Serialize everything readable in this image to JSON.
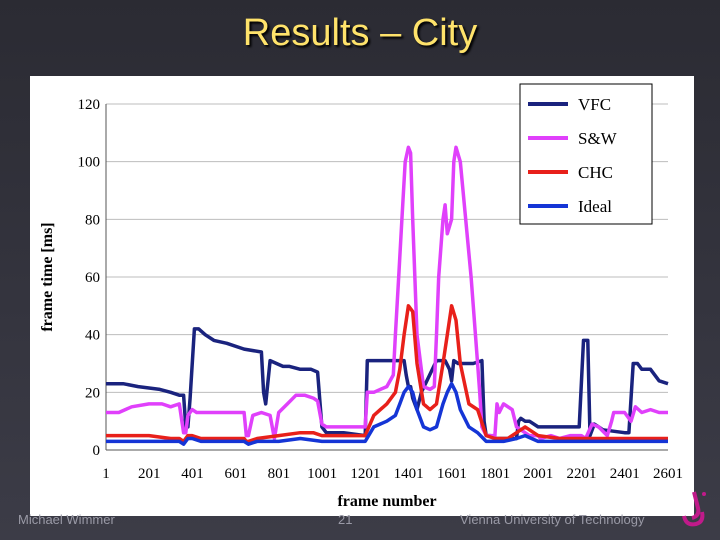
{
  "slide": {
    "title": "Results – City",
    "footer_author": "Michael Wimmer",
    "footer_page": "21",
    "footer_org": "Vienna University of Technology"
  },
  "chart_data": {
    "type": "line",
    "title": "",
    "xlabel": "frame number",
    "ylabel": "frame time [ms]",
    "xlim": [
      1,
      2601
    ],
    "ylim": [
      0,
      120
    ],
    "xticks": [
      "1",
      "201",
      "401",
      "601",
      "801",
      "1001",
      "1201",
      "1401",
      "1601",
      "1801",
      "2001",
      "2201",
      "2401",
      "2601"
    ],
    "yticks": [
      "0",
      "20",
      "40",
      "60",
      "80",
      "100",
      "120"
    ],
    "grid": "horizontal",
    "legend_position": "top-right",
    "series": [
      {
        "name": "VFC",
        "color": "#1a237e",
        "x": [
          1,
          80,
          150,
          250,
          300,
          340,
          360,
          370,
          380,
          390,
          410,
          430,
          460,
          500,
          560,
          640,
          720,
          730,
          740,
          760,
          790,
          820,
          850,
          900,
          950,
          980,
          1000,
          1020,
          1100,
          1200,
          1210,
          1230,
          1300,
          1380,
          1390,
          1400,
          1410,
          1420,
          1440,
          1460,
          1530,
          1550,
          1570,
          1590,
          1600,
          1610,
          1630,
          1700,
          1740,
          1750,
          1760,
          1780,
          1800,
          1900,
          1910,
          1920,
          1940,
          1960,
          2000,
          2030,
          2060,
          2100,
          2150,
          2190,
          2210,
          2230,
          2240,
          2260,
          2280,
          2300,
          2400,
          2420,
          2440,
          2460,
          2480,
          2520,
          2560,
          2601
        ],
        "y": [
          23,
          23,
          22,
          21,
          20,
          19,
          19,
          8,
          8,
          18,
          42,
          42,
          40,
          38,
          37,
          35,
          34,
          20,
          16,
          31,
          30,
          29,
          29,
          28,
          28,
          27,
          8,
          6,
          6,
          5,
          31,
          31,
          31,
          31,
          26,
          22,
          22,
          18,
          14,
          20,
          31,
          31,
          31,
          28,
          24,
          31,
          30,
          30,
          31,
          10,
          5,
          5,
          4,
          4,
          10,
          11,
          10,
          10,
          8,
          8,
          8,
          8,
          8,
          8,
          38,
          38,
          5,
          9,
          8,
          7,
          6,
          6,
          30,
          30,
          28,
          28,
          24,
          23
        ]
      },
      {
        "name": "S&W",
        "color": "#e040fb",
        "x": [
          1,
          60,
          120,
          200,
          260,
          300,
          340,
          360,
          370,
          380,
          400,
          420,
          440,
          500,
          600,
          640,
          650,
          660,
          680,
          720,
          760,
          780,
          800,
          840,
          880,
          920,
          960,
          980,
          1000,
          1020,
          1100,
          1200,
          1210,
          1240,
          1300,
          1330,
          1340,
          1355,
          1370,
          1385,
          1400,
          1410,
          1420,
          1440,
          1470,
          1500,
          1520,
          1530,
          1540,
          1560,
          1570,
          1580,
          1600,
          1610,
          1620,
          1640,
          1690,
          1720,
          1730,
          1740,
          1760,
          1800,
          1810,
          1820,
          1840,
          1880,
          1900,
          1920,
          1960,
          2000,
          2010,
          2060,
          2100,
          2150,
          2190,
          2200,
          2220,
          2250,
          2280,
          2320,
          2340,
          2350,
          2370,
          2400,
          2430,
          2450,
          2480,
          2520,
          2560,
          2601
        ],
        "y": [
          13,
          13,
          15,
          16,
          16,
          15,
          16,
          6,
          6,
          12,
          14,
          13,
          13,
          13,
          13,
          13,
          5,
          5,
          12,
          13,
          12,
          4,
          13,
          16,
          19,
          19,
          18,
          17,
          9,
          8,
          8,
          8,
          20,
          20,
          22,
          26,
          40,
          60,
          80,
          100,
          105,
          103,
          80,
          40,
          22,
          21,
          22,
          40,
          60,
          80,
          85,
          75,
          80,
          100,
          105,
          100,
          60,
          30,
          20,
          8,
          5,
          5,
          16,
          13,
          16,
          14,
          8,
          7,
          5,
          5,
          4,
          5,
          4,
          5,
          5,
          5,
          4,
          9,
          8,
          5,
          10,
          13,
          13,
          13,
          10,
          15,
          13,
          14,
          13,
          13
        ]
      },
      {
        "name": "CHC",
        "color": "#e8201a",
        "x": [
          1,
          100,
          200,
          300,
          340,
          360,
          380,
          400,
          440,
          500,
          600,
          640,
          650,
          660,
          700,
          800,
          900,
          960,
          1000,
          1100,
          1200,
          1240,
          1300,
          1340,
          1360,
          1380,
          1400,
          1420,
          1440,
          1470,
          1500,
          1530,
          1560,
          1580,
          1600,
          1620,
          1640,
          1680,
          1720,
          1760,
          1800,
          1820,
          1860,
          1900,
          1940,
          2000,
          2100,
          2200,
          2300,
          2400,
          2500,
          2601
        ],
        "y": [
          5,
          5,
          5,
          4,
          4,
          3,
          5,
          5,
          4,
          4,
          4,
          4,
          3,
          3,
          4,
          5,
          6,
          6,
          5,
          5,
          5,
          12,
          16,
          20,
          28,
          40,
          50,
          48,
          30,
          16,
          14,
          16,
          30,
          40,
          50,
          45,
          30,
          16,
          14,
          5,
          4,
          4,
          4,
          6,
          8,
          5,
          4,
          4,
          4,
          4,
          4,
          4
        ]
      },
      {
        "name": "Ideal",
        "color": "#1535d6",
        "x": [
          1,
          100,
          200,
          300,
          340,
          360,
          380,
          400,
          440,
          500,
          600,
          640,
          660,
          700,
          800,
          900,
          1000,
          1100,
          1200,
          1240,
          1300,
          1340,
          1360,
          1380,
          1400,
          1420,
          1440,
          1470,
          1500,
          1530,
          1560,
          1580,
          1600,
          1620,
          1640,
          1680,
          1720,
          1760,
          1800,
          1840,
          1900,
          1940,
          2000,
          2100,
          2200,
          2300,
          2400,
          2500,
          2601
        ],
        "y": [
          3,
          3,
          3,
          3,
          3,
          2,
          4,
          4,
          3,
          3,
          3,
          3,
          2,
          3,
          3,
          4,
          3,
          3,
          3,
          8,
          10,
          12,
          16,
          20,
          22,
          20,
          14,
          8,
          7,
          8,
          16,
          20,
          23,
          20,
          14,
          8,
          6,
          3,
          3,
          3,
          4,
          5,
          3,
          3,
          3,
          3,
          3,
          3,
          3
        ]
      }
    ]
  }
}
